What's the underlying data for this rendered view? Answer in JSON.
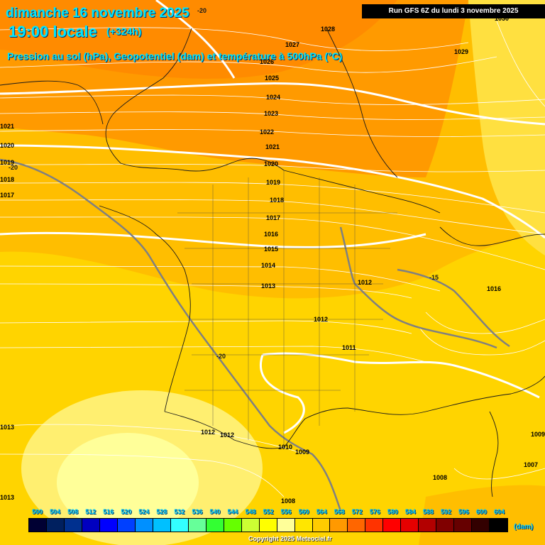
{
  "header": {
    "date": "dimanche 16 novembre 2025",
    "time": "19:00 locale",
    "lead": "(+324h)",
    "subtitle": "Pression au sol (hPa), Geopotentiel (dam) et température à 500hPa (°C)",
    "run": "Run GFS 6Z du lundi 3 novembre 2025"
  },
  "pressure_labels": [
    "1028",
    "1027",
    "1026",
    "1025",
    "1024",
    "1023",
    "1022",
    "1021",
    "1020",
    "1019",
    "1018",
    "1017",
    "1016",
    "1015",
    "1014",
    "1013",
    "1012",
    "1012",
    "1012",
    "1011",
    "1012",
    "1012",
    "1010",
    "1009",
    "1008",
    "1008",
    "1021",
    "1020",
    "1019",
    "1018",
    "1017",
    "1013",
    "1013",
    "1016",
    "1029",
    "1030",
    "1007",
    "1009"
  ],
  "temperature_labels": [
    "-20",
    "-20",
    "-20",
    "-15"
  ],
  "legend": {
    "values": [
      "500",
      "504",
      "508",
      "512",
      "516",
      "520",
      "524",
      "528",
      "532",
      "536",
      "540",
      "544",
      "548",
      "552",
      "556",
      "560",
      "564",
      "568",
      "572",
      "576",
      "580",
      "584",
      "588",
      "592",
      "596",
      "600",
      "604"
    ],
    "colors": [
      "#000033",
      "#00205f",
      "#00308f",
      "#0000c0",
      "#0000ff",
      "#0040ff",
      "#0090ff",
      "#00c0ff",
      "#33ffff",
      "#66ff99",
      "#33ff33",
      "#66ff00",
      "#ccff33",
      "#ffff00",
      "#ffff99",
      "#ffe600",
      "#ffcc00",
      "#ff9900",
      "#ff6600",
      "#ff3300",
      "#ff0000",
      "#e60000",
      "#b30000",
      "#800000",
      "#660000",
      "#330000",
      "#000000"
    ],
    "unit": "(dam)"
  },
  "copyright": "Copyright 2025 Meteociel.fr"
}
